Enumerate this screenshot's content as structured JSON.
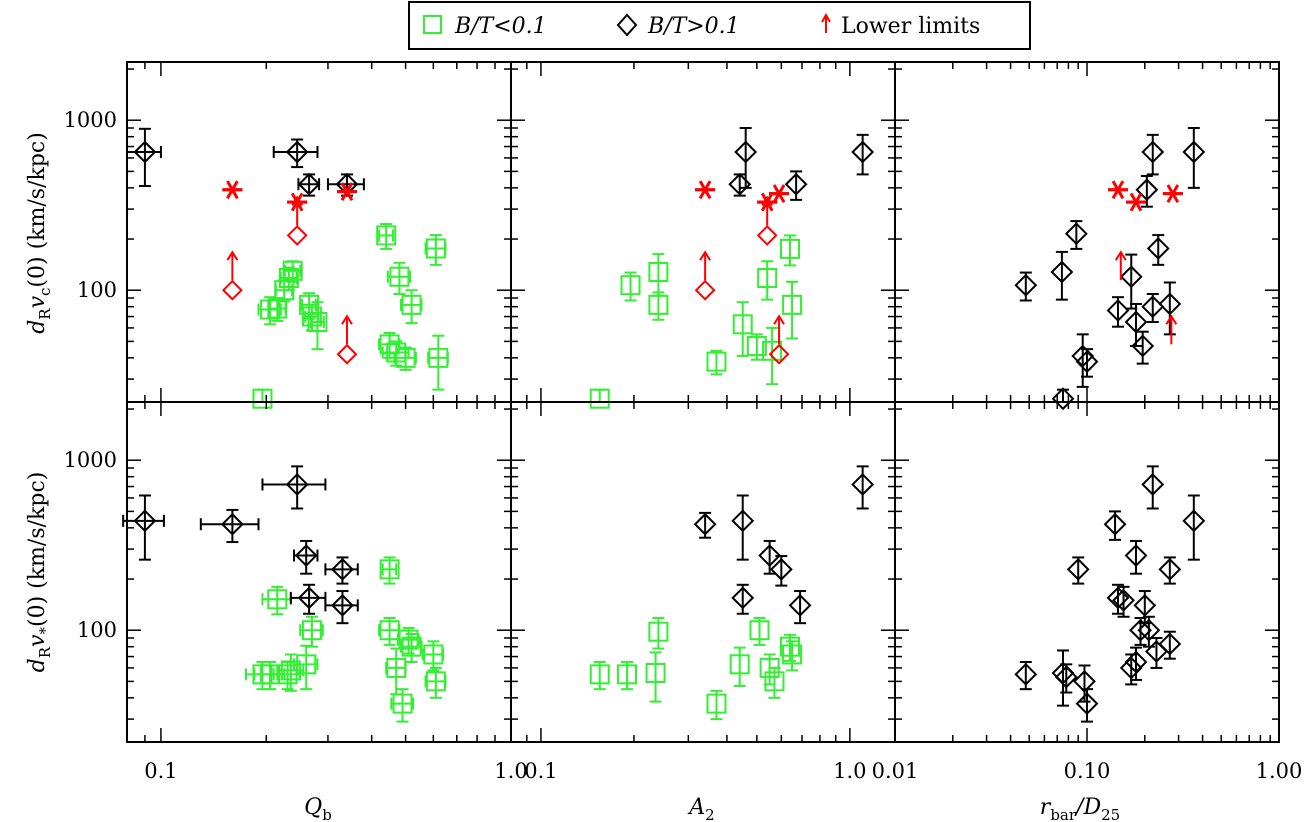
{
  "legend": {
    "green_label": "B/T<0.1",
    "black_label": "B/T>0.1",
    "red_label": "Lower limits"
  },
  "colors": {
    "green": "#33ee33",
    "black": "#000000",
    "red": "#ff0000"
  },
  "row_labels": {
    "top": {
      "prefix": "d",
      "sub1": "R",
      "mid": "v",
      "sub2": "c",
      "suffix": "(0) (km/s/kpc)"
    },
    "bottom": {
      "prefix": "d",
      "sub1": "R",
      "mid": "v",
      "sub2": "*",
      "suffix": "(0) (km/s/kpc)"
    }
  },
  "col_labels": [
    {
      "main": "Q",
      "sub": "b",
      "tail": ""
    },
    {
      "main": "A",
      "sub": "2",
      "tail": ""
    },
    {
      "main": "r",
      "sub": "bar",
      "tail": "/D",
      "sub2": "25"
    }
  ],
  "ytick_labels": [
    "100",
    "1000"
  ],
  "xtick_labels": [
    [
      "0.1",
      "1.0"
    ],
    [
      "0.1",
      "1.0"
    ],
    [
      "0.01",
      "0.10",
      "1.00"
    ]
  ],
  "chart_data": [
    {
      "type": "scatter",
      "panel": "top-left",
      "xlabel": "Q_b",
      "ylabel": "d_R v_c(0) (km/s/kpc)",
      "xscale": "log",
      "yscale": "log",
      "xlim": [
        0.08,
        1.0
      ],
      "ylim": [
        22,
        2200
      ],
      "series": [
        {
          "name": "B/T<0.1",
          "marker": "square",
          "points": [
            [
              0.195,
              23,
              0,
              3
            ],
            [
              0.205,
              77,
              0.015,
              14
            ],
            [
              0.215,
              78,
              0.012,
              12
            ],
            [
              0.225,
              100,
              0.012,
              14
            ],
            [
              0.232,
              118,
              0.012,
              18
            ],
            [
              0.238,
              130,
              0.012,
              18
            ],
            [
              0.265,
              82,
              0.012,
              14
            ],
            [
              0.27,
              70,
              0.012,
              12
            ],
            [
              0.28,
              65,
              0.012,
              20
            ],
            [
              0.44,
              210,
              0.02,
              35
            ],
            [
              0.45,
              48,
              0.03,
              8
            ],
            [
              0.47,
              43,
              0.04,
              7
            ],
            [
              0.48,
              120,
              0.035,
              25
            ],
            [
              0.5,
              40,
              0.035,
              6
            ],
            [
              0.52,
              82,
              0.035,
              18
            ],
            [
              0.61,
              176,
              0.04,
              35
            ],
            [
              0.62,
              40,
              0.04,
              14
            ]
          ]
        },
        {
          "name": "B/T>0.1",
          "marker": "diamond",
          "points": [
            [
              0.09,
              650,
              0.01,
              240
            ],
            [
              0.245,
              650,
              0.035,
              120
            ],
            [
              0.265,
              420,
              0.018,
              60
            ],
            [
              0.34,
              420,
              0.04,
              60
            ]
          ]
        },
        {
          "name": "Lower limits",
          "marker": "diamond-arrow",
          "points": [
            [
              0.16,
              100
            ],
            [
              0.245,
              210
            ],
            [
              0.34,
              42
            ]
          ]
        },
        {
          "name": "Lower limits",
          "marker": "asterisk",
          "points": [
            [
              0.16,
              390
            ],
            [
              0.245,
              330
            ],
            [
              0.34,
              380
            ]
          ]
        }
      ]
    },
    {
      "type": "scatter",
      "panel": "top-middle",
      "xlabel": "A_2",
      "ylabel": "",
      "xscale": "log",
      "yscale": "log",
      "xlim": [
        0.08,
        1.4
      ],
      "ylim": [
        22,
        2200
      ],
      "series": [
        {
          "name": "B/T<0.1",
          "marker": "square",
          "points": [
            [
              0.155,
              23,
              0,
              3
            ],
            [
              0.195,
              107,
              0,
              20
            ],
            [
              0.24,
              128,
              0,
              35
            ],
            [
              0.24,
              82,
              0,
              15
            ],
            [
              0.37,
              38,
              0,
              6
            ],
            [
              0.45,
              63,
              0,
              22
            ],
            [
              0.5,
              47,
              0,
              8
            ],
            [
              0.54,
              118,
              0,
              30
            ],
            [
              0.56,
              44,
              0,
              16
            ],
            [
              0.64,
              175,
              0,
              35
            ],
            [
              0.65,
              82,
              0,
              30
            ]
          ]
        },
        {
          "name": "B/T>0.1",
          "marker": "diamond",
          "points": [
            [
              0.44,
              420,
              0,
              60
            ],
            [
              0.46,
              650,
              0,
              250
            ],
            [
              0.67,
              420,
              0,
              80
            ],
            [
              1.1,
              650,
              0,
              170
            ]
          ]
        },
        {
          "name": "Lower limits",
          "marker": "diamond-arrow",
          "points": [
            [
              0.34,
              100
            ],
            [
              0.54,
              210
            ],
            [
              0.59,
              42
            ]
          ]
        },
        {
          "name": "Lower limits",
          "marker": "asterisk",
          "points": [
            [
              0.34,
              390
            ],
            [
              0.54,
              330
            ],
            [
              0.59,
              370
            ]
          ]
        }
      ]
    },
    {
      "type": "scatter",
      "panel": "top-right",
      "xlabel": "r_bar/D_25",
      "ylabel": "",
      "xscale": "log",
      "yscale": "log",
      "xlim": [
        0.01,
        1.0
      ],
      "ylim": [
        22,
        2200
      ],
      "series": [
        {
          "name": "B/T>0.1",
          "marker": "diamond",
          "points": [
            [
              0.048,
              107,
              0,
              20
            ],
            [
              0.074,
              128,
              0,
              40
            ],
            [
              0.075,
              23,
              0,
              3
            ],
            [
              0.088,
              215,
              0,
              40
            ],
            [
              0.095,
              41,
              0,
              14
            ],
            [
              0.1,
              38,
              0,
              7
            ],
            [
              0.145,
              76,
              0,
              15
            ],
            [
              0.17,
              120,
              0,
              42
            ],
            [
              0.18,
              65,
              0,
              18
            ],
            [
              0.195,
              47,
              0,
              10
            ],
            [
              0.205,
              390,
              0,
              80
            ],
            [
              0.22,
              80,
              0,
              15
            ],
            [
              0.22,
              650,
              0,
              170
            ],
            [
              0.235,
              176,
              0,
              35
            ],
            [
              0.27,
              83,
              0,
              28
            ],
            [
              0.36,
              650,
              0,
              250
            ]
          ]
        },
        {
          "name": "Lower limits",
          "marker": "arrow",
          "points": [
            [
              0.15,
              100
            ],
            [
              0.275,
              42
            ]
          ]
        },
        {
          "name": "Lower limits",
          "marker": "asterisk",
          "points": [
            [
              0.145,
              390
            ],
            [
              0.18,
              330
            ],
            [
              0.28,
              370
            ]
          ]
        }
      ]
    },
    {
      "type": "scatter",
      "panel": "bottom-left",
      "xlabel": "Q_b",
      "ylabel": "d_R v_*(0) (km/s/kpc)",
      "xscale": "log",
      "yscale": "log",
      "xlim": [
        0.08,
        1.0
      ],
      "ylim": [
        22,
        2200
      ],
      "series": [
        {
          "name": "B/T<0.1",
          "marker": "square",
          "points": [
            [
              0.195,
              55,
              0.02,
              10
            ],
            [
              0.205,
              55,
              0.02,
              10
            ],
            [
              0.215,
              152,
              0.02,
              28
            ],
            [
              0.23,
              55,
              0.02,
              10
            ],
            [
              0.235,
              58,
              0.02,
              14
            ],
            [
              0.26,
              63,
              0.02,
              18
            ],
            [
              0.27,
              100,
              0.02,
              20
            ],
            [
              0.45,
              228,
              0.02,
              40
            ],
            [
              0.45,
              100,
              0.03,
              18
            ],
            [
              0.47,
              60,
              0.03,
              18
            ],
            [
              0.49,
              37,
              0.035,
              8
            ],
            [
              0.51,
              88,
              0.035,
              15
            ],
            [
              0.52,
              80,
              0.035,
              15
            ],
            [
              0.6,
              72,
              0.04,
              14
            ],
            [
              0.61,
              50,
              0.04,
              10
            ]
          ]
        },
        {
          "name": "B/T>0.1",
          "marker": "diamond",
          "points": [
            [
              0.09,
              440,
              0.012,
              180
            ],
            [
              0.16,
              420,
              0.03,
              90
            ],
            [
              0.245,
              720,
              0.05,
              200
            ],
            [
              0.26,
              275,
              0.02,
              60
            ],
            [
              0.265,
              155,
              0.03,
              30
            ],
            [
              0.33,
              228,
              0.035,
              40
            ],
            [
              0.33,
              140,
              0.035,
              30
            ]
          ]
        }
      ]
    },
    {
      "type": "scatter",
      "panel": "bottom-middle",
      "xlabel": "A_2",
      "ylabel": "",
      "xscale": "log",
      "yscale": "log",
      "xlim": [
        0.08,
        1.4
      ],
      "ylim": [
        22,
        2200
      ],
      "series": [
        {
          "name": "B/T<0.1",
          "marker": "square",
          "points": [
            [
              0.155,
              55,
              0,
              10
            ],
            [
              0.19,
              55,
              0,
              10
            ],
            [
              0.235,
              56,
              0,
              18
            ],
            [
              0.24,
              98,
              0,
              20
            ],
            [
              0.37,
              37,
              0,
              7
            ],
            [
              0.44,
              63,
              0,
              16
            ],
            [
              0.51,
              100,
              0,
              18
            ],
            [
              0.55,
              60,
              0,
              12
            ],
            [
              0.57,
              50,
              0,
              10
            ],
            [
              0.64,
              80,
              0,
              14
            ],
            [
              0.65,
              72,
              0,
              14
            ]
          ]
        },
        {
          "name": "B/T>0.1",
          "marker": "diamond",
          "points": [
            [
              0.34,
              420,
              0,
              70
            ],
            [
              0.45,
              440,
              0,
              180
            ],
            [
              0.45,
              155,
              0,
              30
            ],
            [
              0.55,
              275,
              0,
              60
            ],
            [
              0.6,
              228,
              0,
              45
            ],
            [
              0.69,
              140,
              0,
              30
            ],
            [
              1.1,
              720,
              0,
              200
            ]
          ]
        }
      ]
    },
    {
      "type": "scatter",
      "panel": "bottom-right",
      "xlabel": "r_bar/D_25",
      "ylabel": "",
      "xscale": "log",
      "yscale": "log",
      "xlim": [
        0.01,
        1.0
      ],
      "ylim": [
        22,
        2200
      ],
      "series": [
        {
          "name": "B/T>0.1",
          "marker": "diamond",
          "points": [
            [
              0.048,
              55,
              0,
              10
            ],
            [
              0.075,
              56,
              0,
              20
            ],
            [
              0.078,
              53,
              0,
              10
            ],
            [
              0.09,
              228,
              0,
              40
            ],
            [
              0.097,
              50,
              0,
              12
            ],
            [
              0.1,
              37,
              0,
              8
            ],
            [
              0.14,
              420,
              0,
              80
            ],
            [
              0.145,
              155,
              0,
              30
            ],
            [
              0.155,
              150,
              0,
              30
            ],
            [
              0.17,
              60,
              0,
              12
            ],
            [
              0.18,
              275,
              0,
              60
            ],
            [
              0.18,
              65,
              0,
              14
            ],
            [
              0.19,
              100,
              0,
              18
            ],
            [
              0.2,
              140,
              0,
              30
            ],
            [
              0.21,
              100,
              0,
              20
            ],
            [
              0.22,
              720,
              0,
              200
            ],
            [
              0.23,
              75,
              0,
              15
            ],
            [
              0.27,
              228,
              0,
              40
            ],
            [
              0.27,
              83,
              0,
              15
            ],
            [
              0.36,
              440,
              0,
              180
            ]
          ]
        }
      ]
    }
  ]
}
